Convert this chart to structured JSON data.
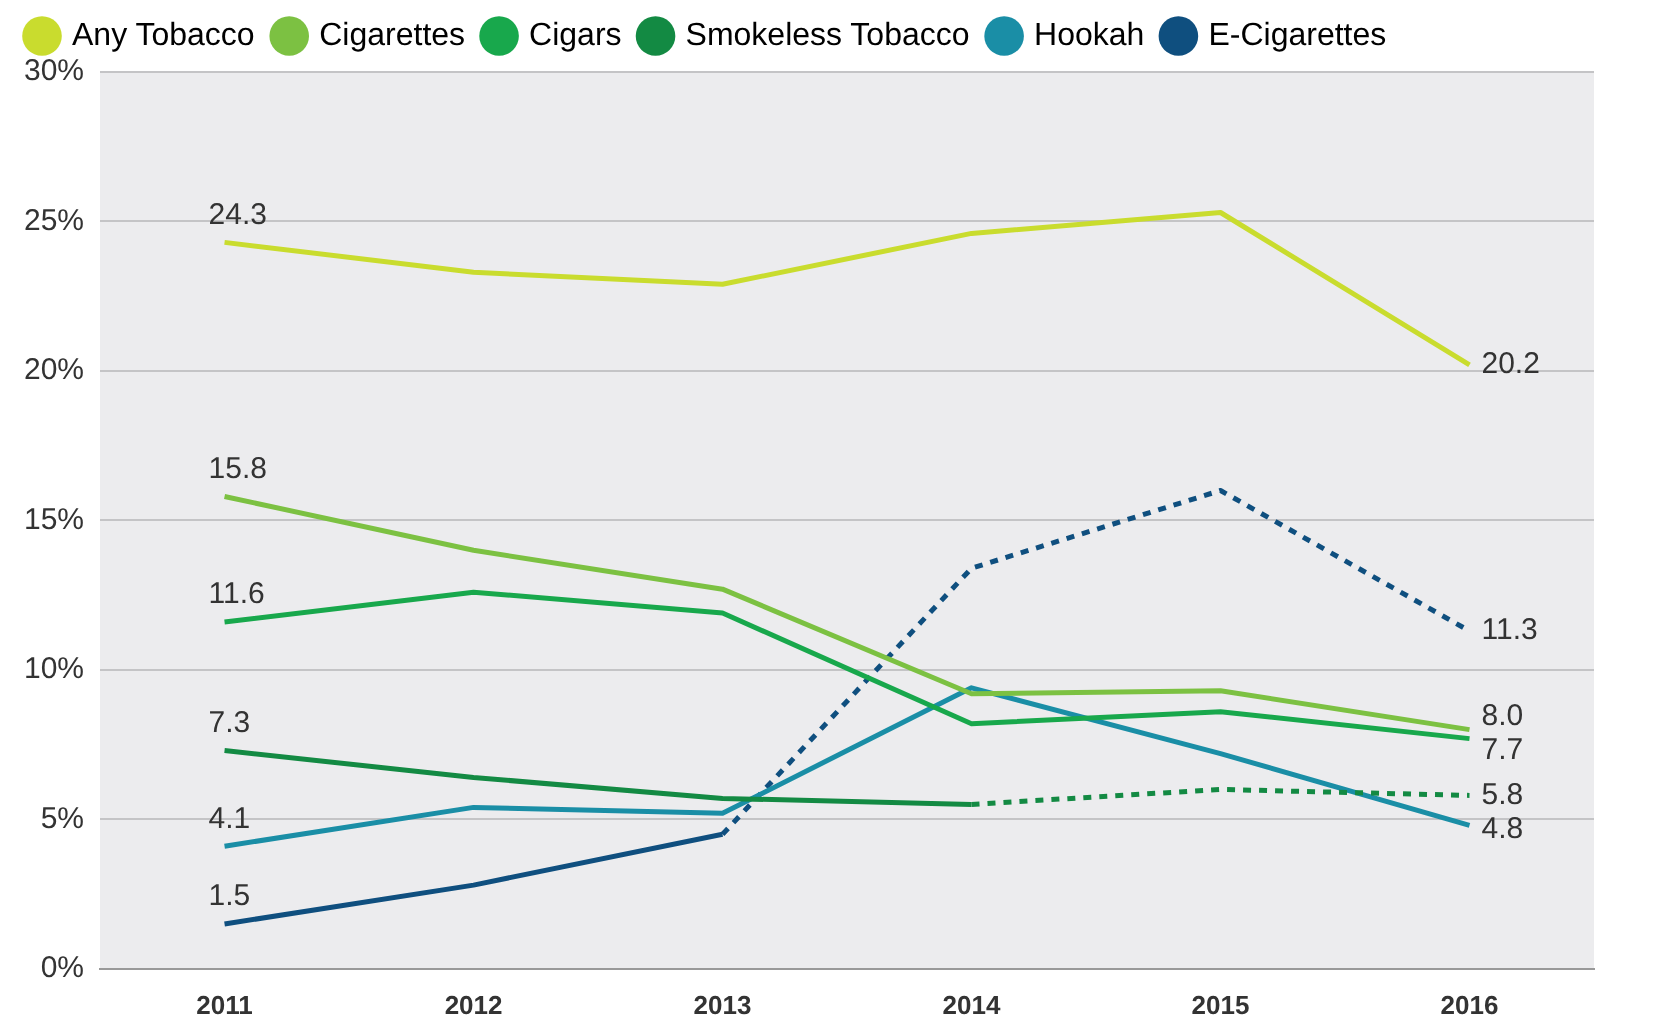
{
  "chart_data": {
    "type": "line",
    "categories": [
      "2011",
      "2012",
      "2013",
      "2014",
      "2015",
      "2016"
    ],
    "series": [
      {
        "name": "Any Tobacco",
        "color": "#c9dc2e",
        "values": [
          24.3,
          23.3,
          22.9,
          24.6,
          25.3,
          20.2
        ],
        "value_labels": [
          "24.3",
          null,
          null,
          null,
          null,
          "20.2"
        ]
      },
      {
        "name": "Cigarettes",
        "color": "#7cc142",
        "values": [
          15.8,
          14.0,
          12.7,
          9.2,
          9.3,
          8.0
        ],
        "value_labels": [
          "15.8",
          null,
          null,
          null,
          null,
          "8.0"
        ]
      },
      {
        "name": "Cigars",
        "color": "#18a84c",
        "values": [
          11.6,
          12.6,
          11.9,
          8.2,
          8.6,
          7.7
        ],
        "value_labels": [
          "11.6",
          null,
          null,
          null,
          null,
          "7.7"
        ]
      },
      {
        "name": "Smokeless Tobacco",
        "color": "#138a43",
        "values": [
          7.3,
          6.4,
          5.7,
          5.5,
          null,
          null
        ],
        "value_labels": [
          "7.3",
          null,
          null,
          null,
          null,
          null
        ]
      },
      {
        "color": "#138a43",
        "values": [
          null,
          null,
          null,
          5.5,
          6.0,
          5.8
        ],
        "line_style": "dotted",
        "value_labels": [
          null,
          null,
          null,
          null,
          null,
          "5.8"
        ]
      },
      {
        "name": "Hookah",
        "color": "#1a8ea6",
        "values": [
          4.1,
          5.4,
          5.2,
          9.4,
          7.2,
          4.8
        ],
        "value_labels": [
          "4.1",
          null,
          null,
          null,
          null,
          "4.8"
        ]
      },
      {
        "name": "E-Cigarettes",
        "color": "#0f4f7f",
        "values": [
          1.5,
          2.8,
          4.5,
          null,
          null,
          null
        ],
        "value_labels": [
          "1.5",
          null,
          null,
          null,
          null,
          null
        ]
      },
      {
        "color": "#0f4f7f",
        "values": [
          null,
          null,
          4.5,
          13.4,
          16.0,
          11.3
        ],
        "line_style": "dotted",
        "value_labels": [
          null,
          null,
          null,
          null,
          null,
          "11.3"
        ]
      }
    ],
    "ylim": [
      0,
      30
    ],
    "yticks": [
      {
        "value": 0,
        "label": "0%"
      },
      {
        "value": 5,
        "label": "5%"
      },
      {
        "value": 10,
        "label": "10%"
      },
      {
        "value": 15,
        "label": "15%"
      },
      {
        "value": 20,
        "label": "20%"
      },
      {
        "value": 25,
        "label": "25%"
      },
      {
        "value": 30,
        "label": "30%"
      }
    ],
    "grid": "y",
    "legend": "top",
    "marker": "none",
    "line_style": "solid"
  }
}
